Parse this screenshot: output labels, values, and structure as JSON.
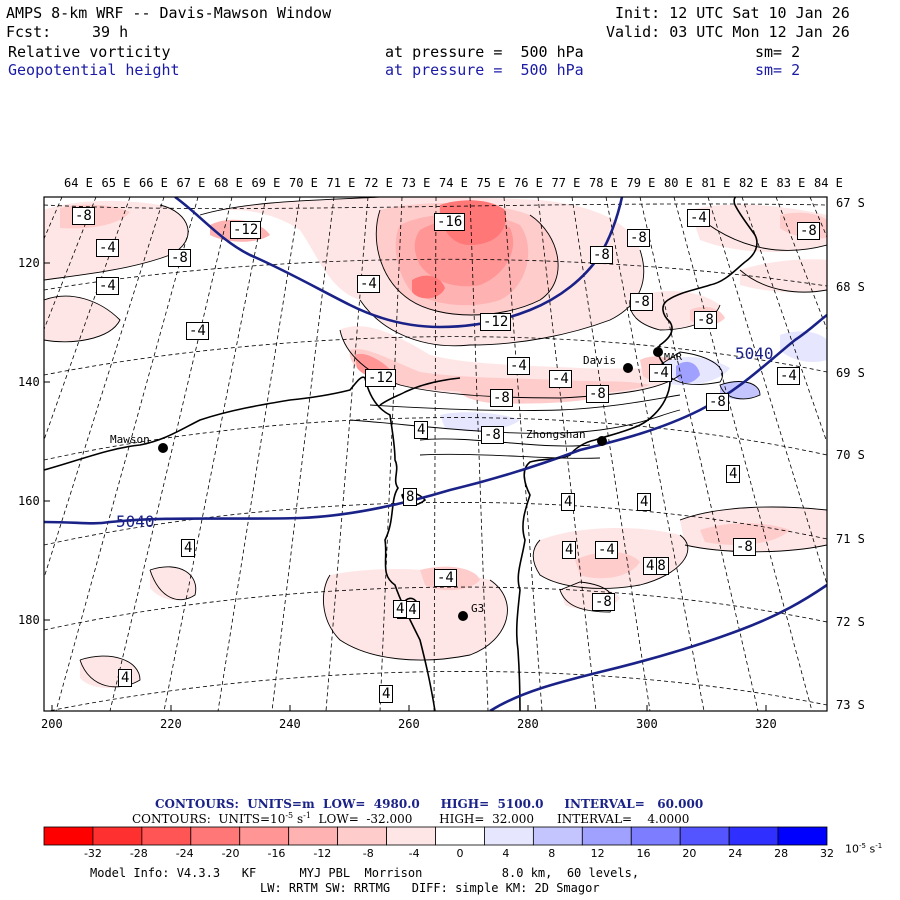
{
  "header": {
    "title": "AMPS 8-km WRF -- Davis-Mawson Window",
    "forecast_label": "Fcst:",
    "forecast_hours": "39 h",
    "init": "Init: 12 UTC Sat 10 Jan 26",
    "valid": "Valid: 03 UTC Mon 12 Jan 26",
    "field1": {
      "name": "Relative vorticity",
      "level": "at pressure =  500 hPa",
      "smooth": "sm= 2"
    },
    "field2": {
      "name": "Geopotential height",
      "level": "at pressure =  500 hPa",
      "smooth": "sm= 2"
    }
  },
  "axes": {
    "top_lon_labels": [
      "64 E",
      "65 E",
      "66 E",
      "67 E",
      "68 E",
      "69 E",
      "70 E",
      "71 E",
      "72 E",
      "73 E",
      "74 E",
      "75 E",
      "76 E",
      "77 E",
      "78 E",
      "79 E",
      "80 E",
      "81 E",
      "82 E",
      "83 E",
      "84 E"
    ],
    "right_lat_labels": [
      "67 S",
      "68 S",
      "69 S",
      "70 S",
      "71 S",
      "72 S",
      "73 S"
    ],
    "left_grid_labels": [
      "120",
      "140",
      "160",
      "180"
    ],
    "bottom_grid_labels": [
      "200",
      "220",
      "240",
      "260",
      "280",
      "300",
      "320"
    ]
  },
  "stations": [
    {
      "name": "Mawson"
    },
    {
      "name": "Davis"
    },
    {
      "name": "Zhongshan"
    },
    {
      "name": "G3"
    },
    {
      "name": "MAR"
    }
  ],
  "contour_labels": {
    "height": [
      "5040",
      "5040"
    ],
    "vorticity": [
      "-8",
      "-4",
      "-4",
      "-8",
      "-12",
      "-4",
      "-4",
      "-16",
      "-8",
      "-8",
      "-4",
      "-8",
      "-8",
      "-12",
      "-12",
      "-8",
      "-8",
      "-4",
      "-4",
      "-4",
      "-8",
      "-4",
      "-8",
      "-8",
      "4",
      "8",
      "4",
      "4",
      "4",
      "4",
      "4",
      "-4",
      "-8",
      "-4",
      "-8",
      "-8",
      "-4",
      "4",
      "4",
      "4",
      "4"
    ]
  },
  "legend": {
    "height_contours": {
      "prefix": "CONTOURS:",
      "units": "UNITS=m",
      "low": "LOW=  4980.0",
      "high": "HIGH=  5100.0",
      "interval": "INTERVAL=   60.000"
    },
    "vort_contours": {
      "prefix": "CONTOURS:",
      "units": "UNITS=10",
      "units_exp": "-5",
      "units_suffix": " s",
      "units_suffix_exp": "-1",
      "low": "LOW=  -32.000",
      "high": "HIGH=  32.000",
      "interval": "INTERVAL=    4.0000"
    },
    "colorbar_labels": [
      "-32",
      "-28",
      "-24",
      "-20",
      "-16",
      "-12",
      "-8",
      "-4",
      "0",
      "4",
      "8",
      "12",
      "16",
      "20",
      "24",
      "28",
      "32"
    ],
    "colorbar_units": "10",
    "colorbar_units_exp": "-5",
    "colorbar_units_suffix": " s",
    "colorbar_units_suffix_exp": "-1",
    "colors": [
      "#ff0000",
      "#ff3030",
      "#ff5555",
      "#ff7777",
      "#ff9595",
      "#ffb2b2",
      "#ffcccc",
      "#ffe6e6",
      "#ffffff",
      "#ffffff",
      "#e6e6ff",
      "#c4c4ff",
      "#a0a0ff",
      "#7d7dff",
      "#5555ff",
      "#2f2fff",
      "#0000ff"
    ]
  },
  "model_info": {
    "line1": "Model Info: V4.3.3   KF      MYJ PBL  Morrison           8.0 km,  60 levels,",
    "line2": "LW: RRTM SW: RRTMG   DIFF: simple KM: 2D Smagor"
  }
}
